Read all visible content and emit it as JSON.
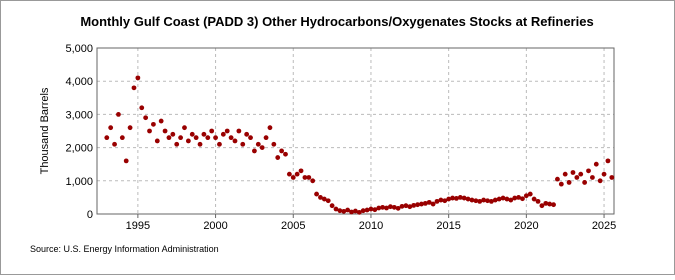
{
  "chart_data": {
    "type": "scatter",
    "title": "Monthly Gulf Coast (PADD 3) Other Hydrocarbons/Oxygenates Stocks at Refineries",
    "y_label": "Thousand Barrels",
    "source": "Source: U.S. Energy Information Administration",
    "color": "#990000",
    "grid": true,
    "xlim": [
      1992.37,
      2025.64
    ],
    "ylim": [
      0,
      5000
    ],
    "xticks": [
      1995,
      2000,
      2005,
      2010,
      2015,
      2020,
      2025
    ],
    "yticks": [
      0,
      {
        "value": 1000,
        "label": "1,000"
      },
      {
        "value": 2000,
        "label": "2,000"
      },
      {
        "value": 3000,
        "label": "3,000"
      },
      {
        "value": 4000,
        "label": "4,000"
      },
      {
        "value": 5000,
        "label": "5,000"
      }
    ],
    "x": [
      1993.0,
      1993.25,
      1993.5,
      1993.75,
      1994.0,
      1994.25,
      1994.5,
      1994.75,
      1995.0,
      1995.25,
      1995.5,
      1995.75,
      1996.0,
      1996.25,
      1996.5,
      1996.75,
      1997.0,
      1997.25,
      1997.5,
      1997.75,
      1998.0,
      1998.25,
      1998.5,
      1998.75,
      1999.0,
      1999.25,
      1999.5,
      1999.75,
      2000.0,
      2000.25,
      2000.5,
      2000.75,
      2001.0,
      2001.25,
      2001.5,
      2001.75,
      2002.0,
      2002.25,
      2002.5,
      2002.75,
      2003.0,
      2003.25,
      2003.5,
      2003.75,
      2004.0,
      2004.25,
      2004.5,
      2004.75,
      2005.0,
      2005.25,
      2005.5,
      2005.75,
      2006.0,
      2006.25,
      2006.5,
      2006.75,
      2007.0,
      2007.25,
      2007.5,
      2007.75,
      2008.0,
      2008.25,
      2008.5,
      2008.75,
      2009.0,
      2009.25,
      2009.5,
      2009.75,
      2010.0,
      2010.25,
      2010.5,
      2010.75,
      2011.0,
      2011.25,
      2011.5,
      2011.75,
      2012.0,
      2012.25,
      2012.5,
      2012.75,
      2013.0,
      2013.25,
      2013.5,
      2013.75,
      2014.0,
      2014.25,
      2014.5,
      2014.75,
      2015.0,
      2015.25,
      2015.5,
      2015.75,
      2016.0,
      2016.25,
      2016.5,
      2016.75,
      2017.0,
      2017.25,
      2017.5,
      2017.75,
      2018.0,
      2018.25,
      2018.5,
      2018.75,
      2019.0,
      2019.25,
      2019.5,
      2019.75,
      2020.0,
      2020.25,
      2020.5,
      2020.75,
      2021.0,
      2021.25,
      2021.5,
      2021.75,
      2022.0,
      2022.25,
      2022.5,
      2022.75,
      2023.0,
      2023.25,
      2023.5,
      2023.75,
      2024.0,
      2024.25,
      2024.5,
      2024.75,
      2025.0,
      2025.25,
      2025.5
    ],
    "values": [
      2300,
      2600,
      2100,
      3000,
      2300,
      1600,
      2600,
      3800,
      4100,
      3200,
      2900,
      2500,
      2700,
      2200,
      2800,
      2500,
      2300,
      2400,
      2100,
      2300,
      2600,
      2200,
      2400,
      2300,
      2100,
      2400,
      2300,
      2500,
      2300,
      2100,
      2400,
      2500,
      2300,
      2200,
      2500,
      2100,
      2400,
      2300,
      1900,
      2100,
      2000,
      2300,
      2600,
      2100,
      1700,
      1900,
      1800,
      1200,
      1100,
      1200,
      1300,
      1100,
      1100,
      1000,
      600,
      500,
      450,
      400,
      250,
      150,
      100,
      80,
      120,
      60,
      90,
      50,
      100,
      120,
      150,
      130,
      180,
      200,
      180,
      220,
      200,
      170,
      230,
      250,
      220,
      260,
      280,
      300,
      320,
      350,
      300,
      380,
      420,
      400,
      450,
      480,
      470,
      500,
      480,
      450,
      420,
      400,
      380,
      420,
      400,
      380,
      420,
      450,
      480,
      450,
      420,
      480,
      500,
      460,
      550,
      600,
      450,
      380,
      250,
      320,
      300,
      280,
      1050,
      900,
      1200,
      950,
      1250,
      1100,
      1200,
      950,
      1300,
      1100,
      1500,
      1000,
      1200,
      1600,
      1100
    ]
  }
}
